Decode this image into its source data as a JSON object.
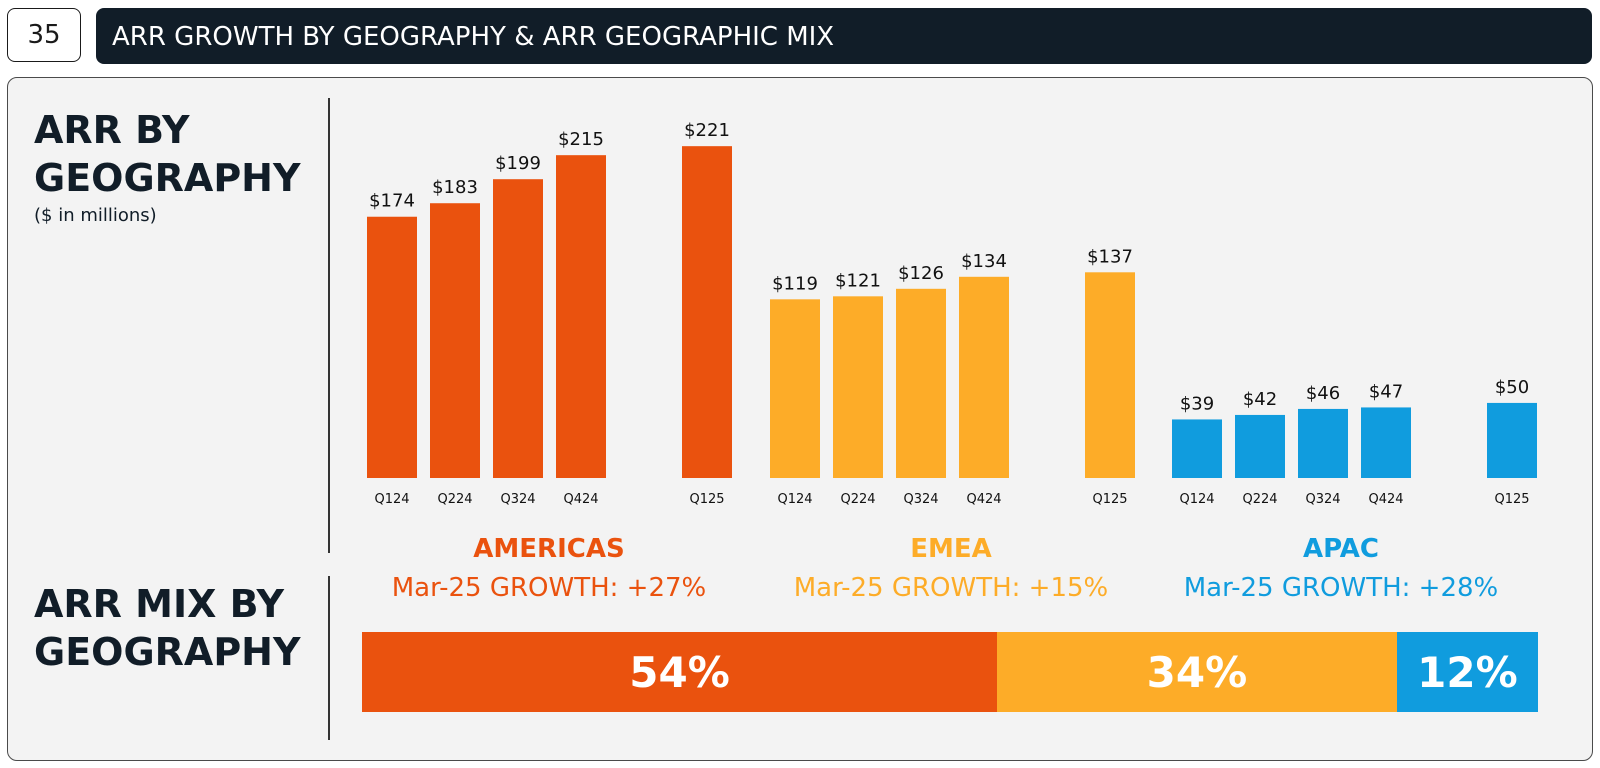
{
  "header": {
    "page_number": "35",
    "title": "ARR GROWTH BY GEOGRAPHY & ARR GEOGRAPHIC MIX"
  },
  "arr_section": {
    "title": "ARR BY\nGEOGRAPHY",
    "subtitle": "($ in millions)"
  },
  "mix_section": {
    "title": "ARR MIX BY\nGEOGRAPHY"
  },
  "colors": {
    "americas": "#ea520e",
    "emea": "#fdac28",
    "apac": "#109cde"
  },
  "regions": [
    {
      "name": "AMERICAS",
      "growth": "Mar-25 GROWTH: +27%",
      "color": "#ea520e"
    },
    {
      "name": "EMEA",
      "growth": "Mar-25 GROWTH: +15%",
      "color": "#fdac28"
    },
    {
      "name": "APAC",
      "growth": "Mar-25 GROWTH: +28%",
      "color": "#109cde"
    }
  ],
  "chart_data": [
    {
      "type": "bar",
      "title": "ARR BY GEOGRAPHY",
      "unit": "$ in millions",
      "groups": [
        {
          "name": "AMERICAS",
          "color": "#ea520e",
          "categories": [
            "Q124",
            "Q224",
            "Q324",
            "Q424",
            "Q125"
          ],
          "values": [
            174,
            183,
            199,
            215,
            221
          ],
          "labels": [
            "$174",
            "$183",
            "$199",
            "$215",
            "$221"
          ]
        },
        {
          "name": "EMEA",
          "color": "#fdac28",
          "categories": [
            "Q124",
            "Q224",
            "Q324",
            "Q424",
            "Q125"
          ],
          "values": [
            119,
            121,
            126,
            134,
            137
          ],
          "labels": [
            "$119",
            "$121",
            "$126",
            "$134",
            "$137"
          ]
        },
        {
          "name": "APAC",
          "color": "#109cde",
          "categories": [
            "Q124",
            "Q224",
            "Q324",
            "Q424",
            "Q125"
          ],
          "values": [
            39,
            42,
            46,
            47,
            50
          ],
          "labels": [
            "$39",
            "$42",
            "$46",
            "$47",
            "$50"
          ]
        }
      ]
    },
    {
      "type": "bar",
      "orientation": "stacked-horizontal",
      "title": "ARR MIX BY GEOGRAPHY",
      "segments": [
        {
          "name": "AMERICAS",
          "value": 54,
          "label": "54%",
          "color": "#ea520e"
        },
        {
          "name": "EMEA",
          "value": 34,
          "label": "34%",
          "color": "#fdac28"
        },
        {
          "name": "APAC",
          "value": 12,
          "label": "12%",
          "color": "#109cde"
        }
      ]
    }
  ]
}
